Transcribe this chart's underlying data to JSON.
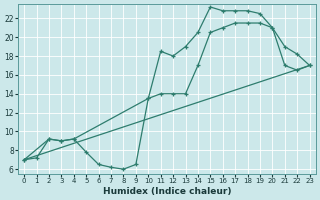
{
  "xlabel": "Humidex (Indice chaleur)",
  "background_color": "#cce8ea",
  "line_color": "#2e7d6e",
  "xlim": [
    -0.5,
    23.5
  ],
  "ylim": [
    5.5,
    23.5
  ],
  "yticks": [
    6,
    8,
    10,
    12,
    14,
    16,
    18,
    20,
    22
  ],
  "xticks": [
    0,
    1,
    2,
    3,
    4,
    5,
    6,
    7,
    8,
    9,
    10,
    11,
    12,
    13,
    14,
    15,
    16,
    17,
    18,
    19,
    20,
    21,
    22,
    23
  ],
  "line1_x": [
    0,
    1,
    2,
    3,
    4,
    5,
    6,
    7,
    8,
    9,
    10,
    11,
    12,
    13,
    14,
    15,
    16,
    17,
    18,
    19,
    20,
    21,
    22,
    23
  ],
  "line1_y": [
    7.0,
    7.2,
    9.2,
    9.0,
    9.2,
    7.8,
    6.5,
    6.2,
    6.0,
    6.5,
    13.5,
    18.5,
    18.0,
    19.0,
    20.5,
    23.2,
    22.8,
    22.8,
    22.8,
    22.5,
    21.0,
    19.0,
    18.2,
    17.0
  ],
  "line2_x": [
    0,
    2,
    3,
    4,
    10,
    11,
    12,
    13,
    14,
    15,
    16,
    17,
    18,
    19,
    20,
    21,
    22,
    23
  ],
  "line2_y": [
    7.0,
    9.2,
    9.0,
    9.2,
    13.5,
    14.0,
    14.0,
    14.0,
    17.0,
    20.5,
    21.0,
    21.5,
    21.5,
    21.5,
    21.0,
    17.0,
    16.5,
    17.0
  ],
  "line3_x": [
    0,
    23
  ],
  "line3_y": [
    7.0,
    17.0
  ]
}
